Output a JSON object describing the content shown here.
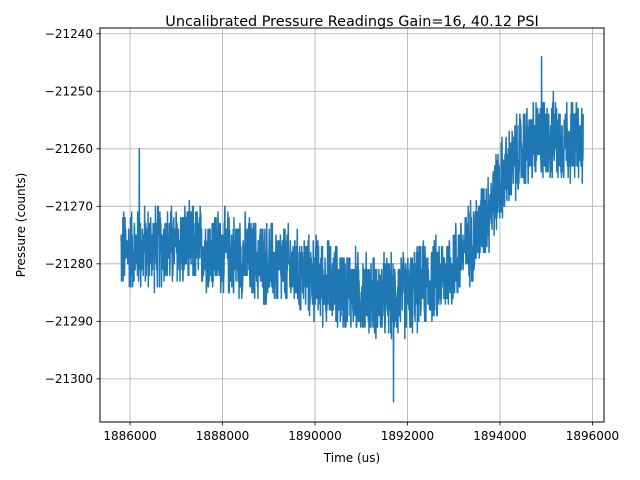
{
  "chart_data": {
    "type": "line",
    "title": "Uncalibrated Pressure Readings Gain=16, 40.12 PSI",
    "xlabel": "Time (us)",
    "ylabel": "Pressure (counts)",
    "xlim": [
      1885350,
      1896250
    ],
    "ylim": [
      -21307.5,
      -21239.0
    ],
    "xticks": [
      1886000,
      1888000,
      1890000,
      1892000,
      1894000,
      1896000
    ],
    "xtick_labels": [
      "1886000",
      "1888000",
      "1890000",
      "1892000",
      "1894000",
      "1896000"
    ],
    "yticks": [
      -21300,
      -21290,
      -21280,
      -21270,
      -21260,
      -21250,
      -21240
    ],
    "ytick_labels": [
      "−21300",
      "−21290",
      "−21280",
      "−21270",
      "−21260",
      "−21250",
      "−21240"
    ],
    "grid": true,
    "x_range": [
      1885800,
      1895800
    ],
    "trend": [
      [
        1885800,
        -21278
      ],
      [
        1886500,
        -21277
      ],
      [
        1887500,
        -21277
      ],
      [
        1888500,
        -21279
      ],
      [
        1889500,
        -21281
      ],
      [
        1890500,
        -21284
      ],
      [
        1891500,
        -21286
      ],
      [
        1892000,
        -21285
      ],
      [
        1892800,
        -21282
      ],
      [
        1893500,
        -21275
      ],
      [
        1894000,
        -21266
      ],
      [
        1894500,
        -21260
      ],
      [
        1895000,
        -21258
      ],
      [
        1895800,
        -21259
      ]
    ],
    "noise_amplitude": 7,
    "extremes": [
      {
        "x": 1894900,
        "y": -21244
      },
      {
        "x": 1891700,
        "y": -21304
      },
      {
        "x": 1886200,
        "y": -21260
      }
    ],
    "series": [
      {
        "color": "#1f77b4"
      }
    ]
  }
}
